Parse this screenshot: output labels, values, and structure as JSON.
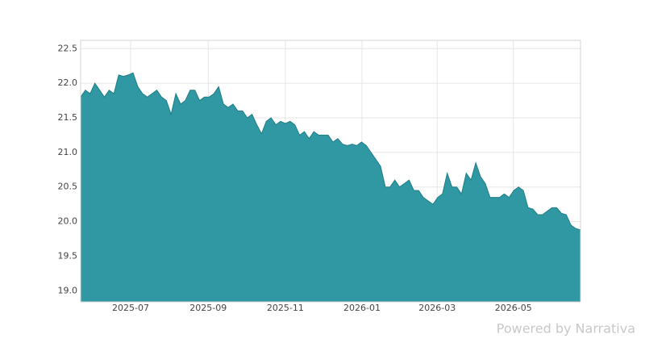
{
  "chart_data": {
    "type": "area",
    "color": "#2f98a3",
    "line_color": "#1f7d87",
    "grid": true,
    "values": [
      21.8,
      21.9,
      21.85,
      22.0,
      21.9,
      21.8,
      21.9,
      21.85,
      22.12,
      22.1,
      22.12,
      22.15,
      21.95,
      21.85,
      21.8,
      21.85,
      21.9,
      21.8,
      21.75,
      21.55,
      21.85,
      21.7,
      21.75,
      21.9,
      21.9,
      21.75,
      21.8,
      21.8,
      21.85,
      21.95,
      21.7,
      21.65,
      21.7,
      21.6,
      21.6,
      21.5,
      21.55,
      21.4,
      21.27,
      21.45,
      21.5,
      21.4,
      21.45,
      21.42,
      21.45,
      21.4,
      21.25,
      21.3,
      21.2,
      21.3,
      21.25,
      21.25,
      21.25,
      21.15,
      21.2,
      21.12,
      21.1,
      21.12,
      21.1,
      21.15,
      21.1,
      21.0,
      20.9,
      20.8,
      20.5,
      20.5,
      20.6,
      20.5,
      20.55,
      20.6,
      20.45,
      20.45,
      20.35,
      20.3,
      20.25,
      20.35,
      20.4,
      20.7,
      20.5,
      20.5,
      20.4,
      20.7,
      20.6,
      20.85,
      20.65,
      20.55,
      20.35,
      20.35,
      20.35,
      20.4,
      20.35,
      20.45,
      20.5,
      20.45,
      20.2,
      20.18,
      20.1,
      20.1,
      20.15,
      20.2,
      20.2,
      20.12,
      20.1,
      19.95,
      19.9,
      19.88
    ],
    "xlim": [
      0,
      105
    ],
    "xticks": [
      {
        "value": 10.5,
        "label": "2025-07"
      },
      {
        "value": 26.8,
        "label": "2025-09"
      },
      {
        "value": 43.0,
        "label": "2025-11"
      },
      {
        "value": 59.1,
        "label": "2026-01"
      },
      {
        "value": 74.9,
        "label": "2026-03"
      },
      {
        "value": 90.9,
        "label": "2026-05"
      }
    ],
    "ylim": [
      18.84,
      22.62
    ],
    "yticks": [
      {
        "value": 19,
        "label": "19.0"
      },
      19.5,
      {
        "value": 20,
        "label": "20.0"
      },
      20.5,
      {
        "value": 21,
        "label": "21.0"
      },
      21.5,
      {
        "value": 22,
        "label": "22.0"
      },
      22.5
    ]
  },
  "watermark": "Powered by Narrativa"
}
